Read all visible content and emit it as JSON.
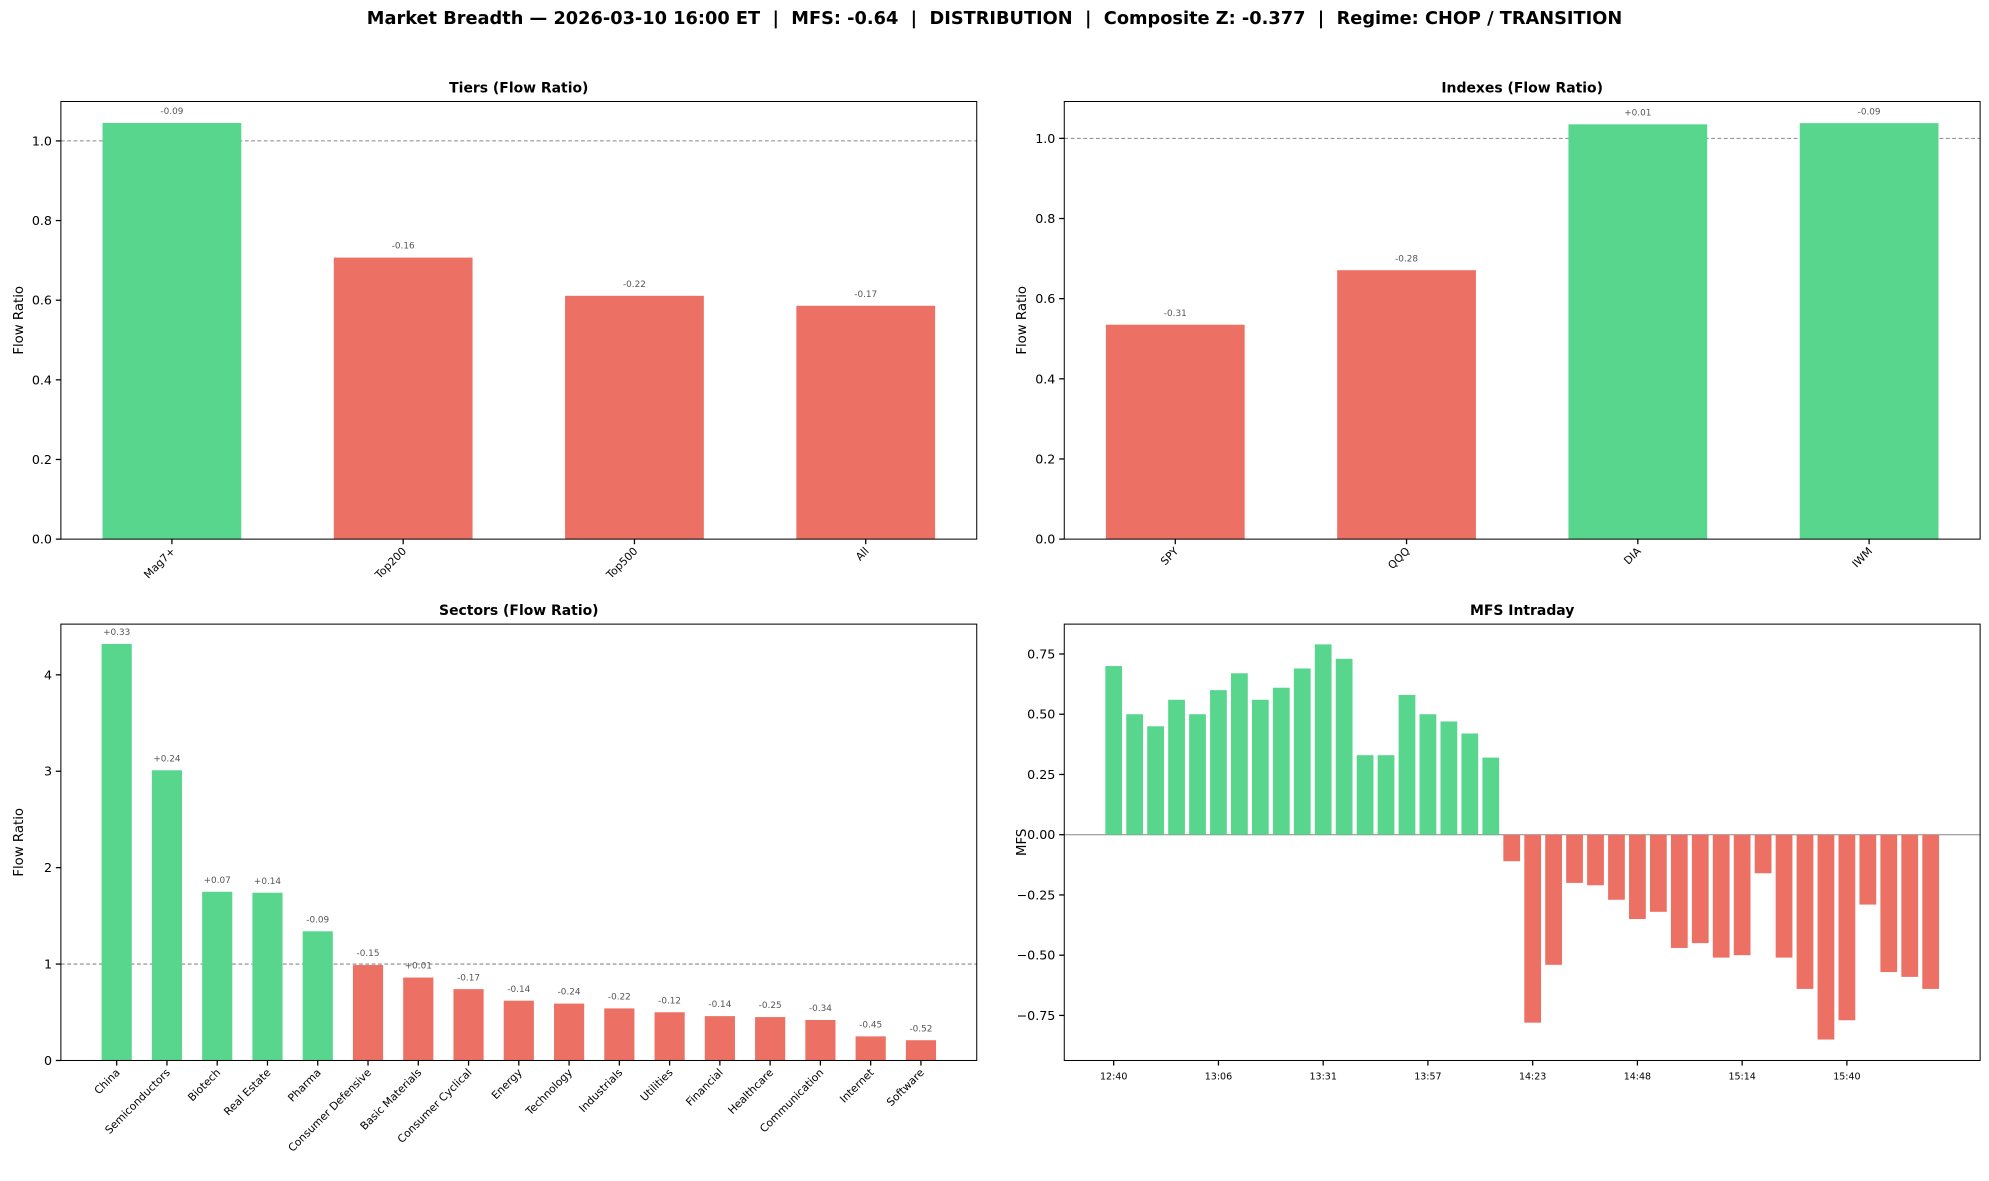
{
  "title": "Market Breadth — 2026-03-10 16:00 ET  |  MFS: -0.64  |  DISTRIBUTION  |  Composite Z: -0.377  |  Regime: CHOP / TRANSITION",
  "chart_data": [
    {
      "type": "bar",
      "title": "Tiers (Flow Ratio)",
      "y_label": "Flow Ratio",
      "categories": [
        "Mag7+",
        "Top200",
        "Top500",
        "All"
      ],
      "values": [
        1.045,
        0.707,
        0.611,
        0.586
      ],
      "annotations": [
        "-0.09",
        "-0.16",
        "-0.22",
        "-0.17"
      ],
      "colors": [
        "#58d68d",
        "#ec7063",
        "#ec7063",
        "#ec7063"
      ],
      "ylim": [
        0,
        1.099
      ],
      "yticks": [
        {
          "value": 0,
          "label": "0.0"
        },
        0.2,
        0.4,
        0.6,
        0.8,
        {
          "value": 1,
          "label": "1.0"
        }
      ],
      "hline": {
        "value": 1,
        "style": "dashed"
      },
      "rotate_labels": true
    },
    {
      "type": "bar",
      "title": "Indexes (Flow Ratio)",
      "y_label": "Flow Ratio",
      "categories": [
        "SPY",
        "QQQ",
        "DIA",
        "IWM"
      ],
      "values": [
        0.535,
        0.671,
        1.035,
        1.038
      ],
      "annotations": [
        "-0.31",
        "-0.28",
        "+0.01",
        "-0.09"
      ],
      "colors": [
        "#ec7063",
        "#ec7063",
        "#58d68d",
        "#58d68d"
      ],
      "ylim": [
        0,
        1.092
      ],
      "yticks": [
        {
          "value": 0,
          "label": "0.0"
        },
        0.2,
        0.4,
        0.6,
        0.8,
        {
          "value": 1,
          "label": "1.0"
        }
      ],
      "hline": {
        "value": 1,
        "style": "dashed"
      },
      "rotate_labels": true
    },
    {
      "type": "bar",
      "title": "Sectors (Flow Ratio)",
      "y_label": "Flow Ratio",
      "categories": [
        "China",
        "Semiconductors",
        "Biotech",
        "Real Estate",
        "Pharma",
        "Consumer Defensive",
        "Basic Materials",
        "Consumer Cyclical",
        "Energy",
        "Technology",
        "Industrials",
        "Utilities",
        "Financial",
        "Healthcare",
        "Communication",
        "Internet",
        "Software"
      ],
      "values": [
        4.32,
        3.01,
        1.75,
        1.74,
        1.34,
        0.99,
        0.86,
        0.74,
        0.62,
        0.59,
        0.54,
        0.5,
        0.46,
        0.45,
        0.42,
        0.25,
        0.21
      ],
      "annotations": [
        "+0.33",
        "+0.24",
        "+0.07",
        "+0.14",
        "-0.09",
        "-0.15",
        "+0.01",
        "-0.17",
        "-0.14",
        "-0.24",
        "-0.22",
        "-0.12",
        "-0.14",
        "-0.25",
        "-0.34",
        "-0.45",
        "-0.52"
      ],
      "colors": [
        "#58d68d",
        "#58d68d",
        "#58d68d",
        "#58d68d",
        "#58d68d",
        "#ec7063",
        "#ec7063",
        "#ec7063",
        "#ec7063",
        "#ec7063",
        "#ec7063",
        "#ec7063",
        "#ec7063",
        "#ec7063",
        "#ec7063",
        "#ec7063",
        "#ec7063"
      ],
      "ylim": [
        0,
        4.526
      ],
      "yticks": [
        0,
        1,
        2,
        3,
        4
      ],
      "hline": {
        "value": 1,
        "style": "dashed"
      },
      "rotate_labels": true
    },
    {
      "type": "bar",
      "title": "MFS Intraday",
      "y_label": "MFS",
      "categories": [
        "12:40",
        null,
        null,
        null,
        null,
        "13:06",
        null,
        null,
        null,
        null,
        "13:31",
        null,
        null,
        null,
        null,
        "13:57",
        null,
        null,
        null,
        null,
        "14:23",
        null,
        null,
        null,
        null,
        "14:48",
        null,
        null,
        null,
        null,
        "15:14",
        null,
        null,
        null,
        null,
        "15:40",
        null,
        null,
        null,
        null
      ],
      "values": [
        0.7,
        0.5,
        0.45,
        0.56,
        0.5,
        0.6,
        0.67,
        0.56,
        0.61,
        0.69,
        0.79,
        0.73,
        0.33,
        0.33,
        0.58,
        0.5,
        0.47,
        0.42,
        0.32,
        -0.11,
        -0.78,
        -0.54,
        -0.2,
        -0.21,
        -0.27,
        -0.35,
        -0.32,
        -0.47,
        -0.45,
        -0.51,
        -0.5,
        -0.16,
        -0.51,
        -0.64,
        -0.85,
        -0.77,
        -0.29,
        -0.57,
        -0.59,
        -0.64
      ],
      "positive_color": "#58d68d",
      "negative_color": "#ec7063",
      "ylim": [
        -0.937,
        0.874
      ],
      "yticks": [
        {
          "value": -0.75,
          "label": "−0.75"
        },
        {
          "value": -0.5,
          "label": "−0.50"
        },
        {
          "value": -0.25,
          "label": "−0.25"
        },
        {
          "value": 0,
          "label": "0.00"
        },
        0.25,
        {
          "value": 0.5,
          "label": "0.50"
        },
        0.75
      ],
      "hline": {
        "value": 0,
        "style": "solid"
      },
      "rotate_labels": false
    }
  ]
}
